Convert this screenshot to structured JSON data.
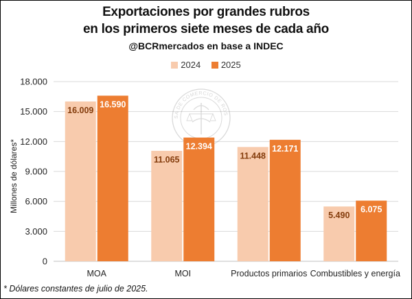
{
  "chart_data": {
    "type": "bar",
    "title": "Exportaciones por grandes rubros",
    "title_line2": "en los primeros siete meses de cada año",
    "subtitle": "@BCRmercados en base a INDEC",
    "ylabel": "Millones de dólares*",
    "xlabel": "",
    "categories": [
      "MOA",
      "MOI",
      "Productos primarios",
      "Combustibles y energía"
    ],
    "series": [
      {
        "name": "2024",
        "values": [
          16009,
          11065,
          11448,
          5490
        ],
        "labels": [
          "16.009",
          "11.065",
          "11.448",
          "5.490"
        ],
        "color": "#F8CBAD",
        "label_color": "#843C0C"
      },
      {
        "name": "2025",
        "values": [
          16590,
          12394,
          12171,
          6075
        ],
        "labels": [
          "16.590",
          "12.394",
          "12.171",
          "6.075"
        ],
        "color": "#ED7D31",
        "label_color": "#FFFFFF"
      }
    ],
    "ylim": [
      0,
      18000
    ],
    "yticks": [
      0,
      3000,
      6000,
      9000,
      12000,
      15000,
      18000
    ],
    "ytick_labels": [
      "0",
      "3.000",
      "6.000",
      "9.000",
      "12.000",
      "15.000",
      "18.000"
    ],
    "grid": true,
    "legend_position": "top-center"
  },
  "watermark": {
    "text": "BOLSA DE COMERCIO DE ROSARIO"
  },
  "footnote": "* Dólares constantes de julio de 2025."
}
